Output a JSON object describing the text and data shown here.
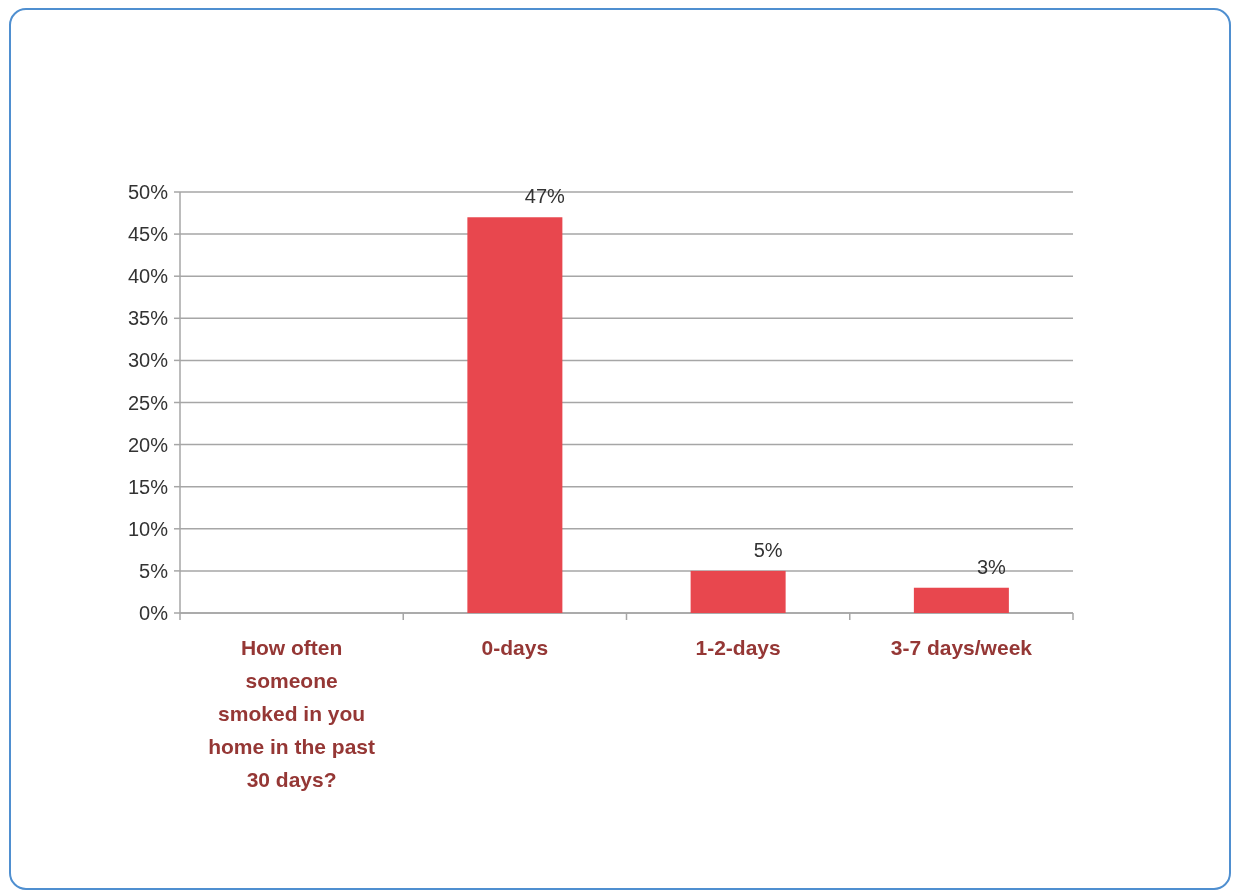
{
  "chart_data": {
    "type": "bar",
    "categories": [
      "How often someone smoked in you home in the past 30 days?",
      "0-days",
      "1-2-days",
      "3-7 days/week"
    ],
    "values": [
      null,
      47,
      5,
      3
    ],
    "value_labels": [
      null,
      "47%",
      "5%",
      "3%"
    ],
    "color": "#e8474e",
    "ylim": [
      0,
      50
    ],
    "yticks": [
      {
        "value": 0,
        "label": "0%"
      },
      {
        "value": 5,
        "label": "5%"
      },
      {
        "value": 10,
        "label": "10%"
      },
      {
        "value": 15,
        "label": "15%"
      },
      {
        "value": 20,
        "label": "20%"
      },
      {
        "value": 25,
        "label": "25%"
      },
      {
        "value": 30,
        "label": "30%"
      },
      {
        "value": 35,
        "label": "35%"
      },
      {
        "value": 40,
        "label": "40%"
      },
      {
        "value": 45,
        "label": "45%"
      },
      {
        "value": 50,
        "label": "50%"
      }
    ],
    "grid": "y"
  }
}
